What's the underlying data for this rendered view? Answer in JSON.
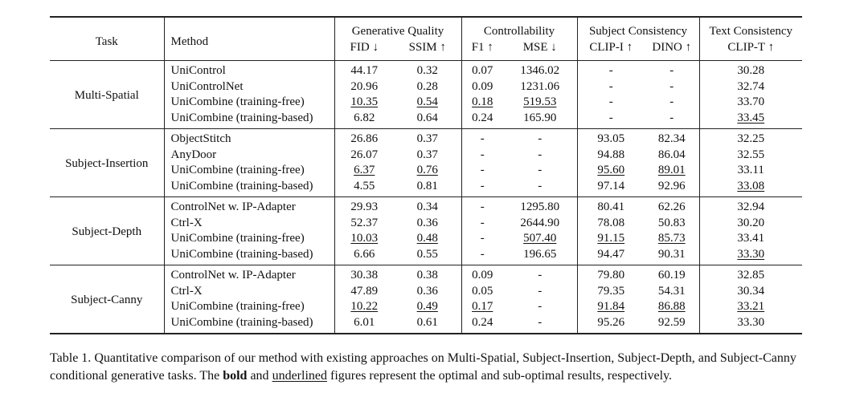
{
  "header": {
    "task": "Task",
    "method": "Method",
    "groups": {
      "gen_quality": "Generative Quality",
      "controllability": "Controllability",
      "subject_consistency": "Subject Consistency",
      "text_consistency": "Text Consistency"
    },
    "metrics": {
      "fid": "FID ↓",
      "ssim": "SSIM ↑",
      "f1": "F1 ↑",
      "mse": "MSE ↓",
      "clip_i": "CLIP-I ↑",
      "dino": "DINO ↑",
      "clip_t": "CLIP-T ↑"
    }
  },
  "groups": [
    {
      "task": "Multi-Spatial",
      "rows": [
        {
          "method": "UniControl",
          "fid": "44.17",
          "ssim": "0.32",
          "f1": "0.07",
          "mse": "1346.02",
          "clip_i": "-",
          "dino": "-",
          "clip_t": "30.28"
        },
        {
          "method": "UniControlNet",
          "fid": "20.96",
          "ssim": "0.28",
          "f1": "0.09",
          "mse": "1231.06",
          "clip_i": "-",
          "dino": "-",
          "clip_t": "32.74"
        },
        {
          "method": "UniCombine (training-free)",
          "fid": "10.35",
          "ssim": "0.54",
          "f1": "0.18",
          "mse": "519.53",
          "clip_i": "-",
          "dino": "-",
          "clip_t": "33.70"
        },
        {
          "method": "UniCombine (training-based)",
          "fid": "6.82",
          "ssim": "0.64",
          "f1": "0.24",
          "mse": "165.90",
          "clip_i": "-",
          "dino": "-",
          "clip_t": "33.45"
        }
      ]
    },
    {
      "task": "Subject-Insertion",
      "rows": [
        {
          "method": "ObjectStitch",
          "fid": "26.86",
          "ssim": "0.37",
          "f1": "-",
          "mse": "-",
          "clip_i": "93.05",
          "dino": "82.34",
          "clip_t": "32.25"
        },
        {
          "method": "AnyDoor",
          "fid": "26.07",
          "ssim": "0.37",
          "f1": "-",
          "mse": "-",
          "clip_i": "94.88",
          "dino": "86.04",
          "clip_t": "32.55"
        },
        {
          "method": "UniCombine (training-free)",
          "fid": "6.37",
          "ssim": "0.76",
          "f1": "-",
          "mse": "-",
          "clip_i": "95.60",
          "dino": "89.01",
          "clip_t": "33.11"
        },
        {
          "method": "UniCombine (training-based)",
          "fid": "4.55",
          "ssim": "0.81",
          "f1": "-",
          "mse": "-",
          "clip_i": "97.14",
          "dino": "92.96",
          "clip_t": "33.08"
        }
      ]
    },
    {
      "task": "Subject-Depth",
      "rows": [
        {
          "method": "ControlNet w. IP-Adapter",
          "fid": "29.93",
          "ssim": "0.34",
          "f1": "-",
          "mse": "1295.80",
          "clip_i": "80.41",
          "dino": "62.26",
          "clip_t": "32.94"
        },
        {
          "method": "Ctrl-X",
          "fid": "52.37",
          "ssim": "0.36",
          "f1": "-",
          "mse": "2644.90",
          "clip_i": "78.08",
          "dino": "50.83",
          "clip_t": "30.20"
        },
        {
          "method": "UniCombine (training-free)",
          "fid": "10.03",
          "ssim": "0.48",
          "f1": "-",
          "mse": "507.40",
          "clip_i": "91.15",
          "dino": "85.73",
          "clip_t": "33.41"
        },
        {
          "method": "UniCombine (training-based)",
          "fid": "6.66",
          "ssim": "0.55",
          "f1": "-",
          "mse": "196.65",
          "clip_i": "94.47",
          "dino": "90.31",
          "clip_t": "33.30"
        }
      ]
    },
    {
      "task": "Subject-Canny",
      "rows": [
        {
          "method": "ControlNet w. IP-Adapter",
          "fid": "30.38",
          "ssim": "0.38",
          "f1": "0.09",
          "mse": "-",
          "clip_i": "79.80",
          "dino": "60.19",
          "clip_t": "32.85"
        },
        {
          "method": "Ctrl-X",
          "fid": "47.89",
          "ssim": "0.36",
          "f1": "0.05",
          "mse": "-",
          "clip_i": "79.35",
          "dino": "54.31",
          "clip_t": "30.34"
        },
        {
          "method": "UniCombine (training-free)",
          "fid": "10.22",
          "ssim": "0.49",
          "f1": "0.17",
          "mse": "-",
          "clip_i": "91.84",
          "dino": "86.88",
          "clip_t": "33.21"
        },
        {
          "method": "UniCombine (training-based)",
          "fid": "6.01",
          "ssim": "0.61",
          "f1": "0.24",
          "mse": "-",
          "clip_i": "95.26",
          "dino": "92.59",
          "clip_t": "33.30"
        }
      ]
    }
  ],
  "caption": {
    "label": "Table 1.",
    "text1": " Quantitative comparison of our method with existing approaches on Multi-Spatial, Subject-Insertion, Subject-Depth, and Subject-Canny conditional generative tasks. The ",
    "bold_word": "bold",
    "text2": " and ",
    "underline_word": "underlined",
    "text3": " figures represent the optimal and sub-optimal results, respectively."
  }
}
